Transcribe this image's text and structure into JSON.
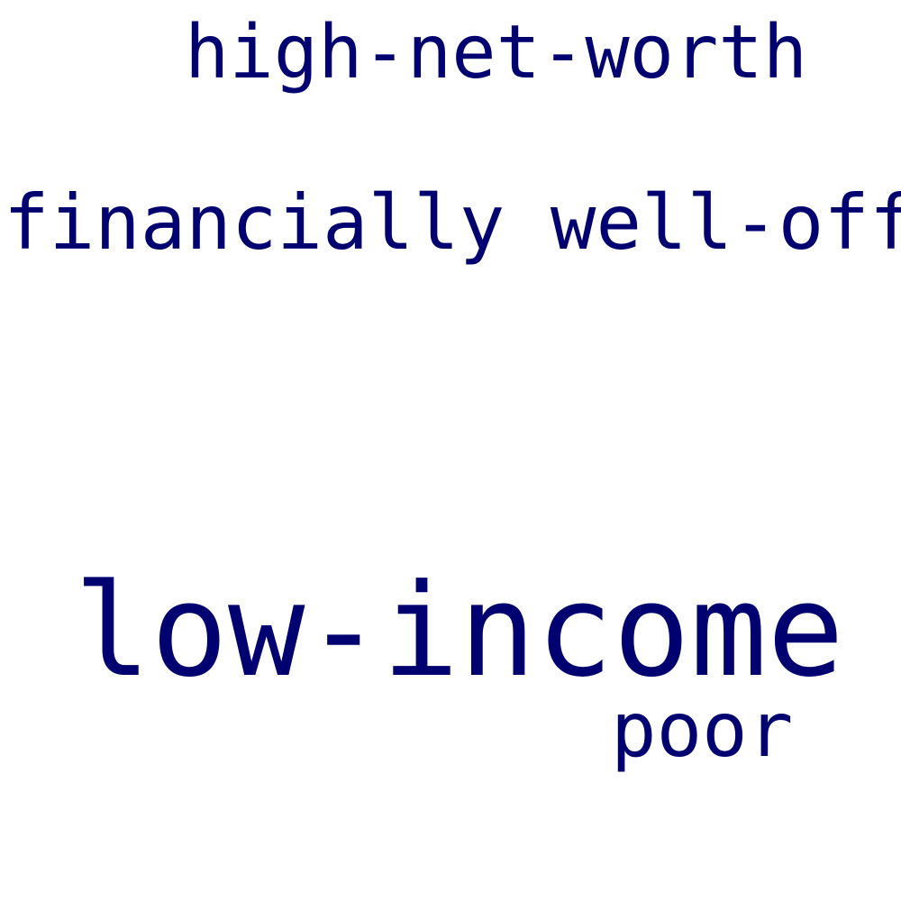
{
  "color": "#000070",
  "words": [
    {
      "text": "high-net-worth"
    },
    {
      "text": "financially well-off"
    },
    {
      "text": "low-income"
    },
    {
      "text": "poor"
    }
  ]
}
